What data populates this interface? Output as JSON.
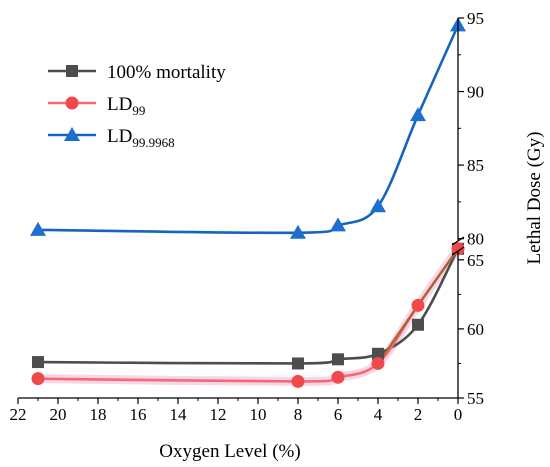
{
  "chart_data": {
    "type": "line",
    "title": "",
    "xlabel": "Oxygen Level (%)",
    "ylabel": "Lethal Dose (Gy)",
    "x_reversed": true,
    "xlim": [
      22,
      0
    ],
    "x_ticks": [
      "22",
      "20",
      "18",
      "16",
      "14",
      "12",
      "10",
      "8",
      "6",
      "4",
      "2",
      "0"
    ],
    "y_axis_position": "right",
    "y_axis_broken": true,
    "y_segments": [
      {
        "ylim": [
          55,
          66
        ],
        "ticks": [
          "55",
          "60",
          "65"
        ]
      },
      {
        "ylim": [
          79.5,
          95
        ],
        "ticks": [
          "80",
          "85",
          "90",
          "95"
        ]
      }
    ],
    "legend_position": "top-left",
    "series": [
      {
        "name": "100% mortality",
        "name_base": "100% mortality",
        "name_sub": "",
        "marker": "square",
        "color": "#4d4d4d",
        "line_color": "#4d4d4d",
        "x": [
          21,
          8,
          6,
          4,
          2,
          0
        ],
        "y": [
          57.6,
          57.5,
          57.8,
          58.2,
          60.3,
          65.8
        ]
      },
      {
        "name": "LD99",
        "name_base": "LD",
        "name_sub": "99",
        "marker": "circle",
        "color": "#f0494c",
        "line_color": "#f56a6e",
        "x": [
          21,
          8,
          6,
          4,
          2,
          0
        ],
        "y": [
          56.4,
          56.2,
          56.5,
          57.5,
          61.7,
          65.8
        ]
      },
      {
        "name": "LD99.9968",
        "name_base": "LD",
        "name_sub": "99.9968",
        "marker": "triangle",
        "color": "#1f6fd0",
        "line_color": "#1565c0",
        "x": [
          21,
          8,
          6,
          4,
          2,
          0
        ],
        "y": [
          80.6,
          80.4,
          80.9,
          82.2,
          88.4,
          94.5
        ]
      }
    ],
    "extra_segment": {
      "color": "#a06a2a",
      "x": [
        4,
        2,
        0
      ],
      "y": [
        57.5,
        61.7,
        65.8
      ]
    }
  }
}
